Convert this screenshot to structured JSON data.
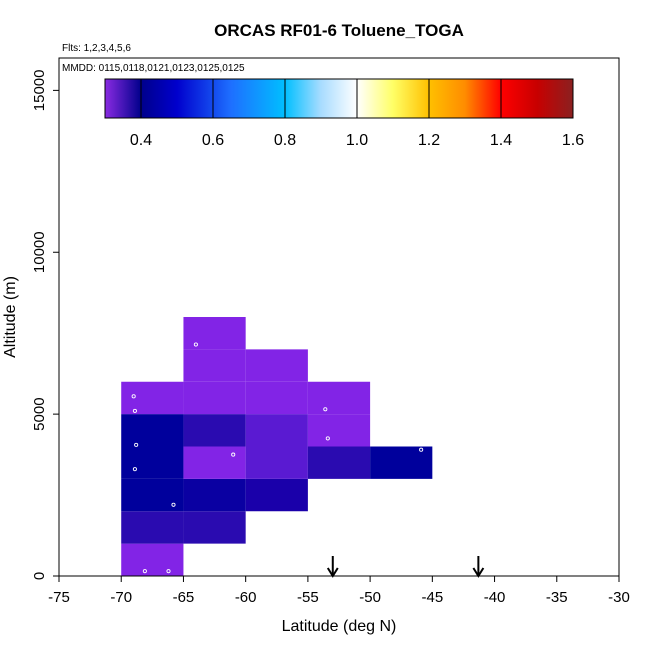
{
  "chart_data": {
    "type": "heatmap",
    "title": "ORCAS RF01-6 Toluene_TOGA",
    "subtitle_flights": "Flts: 1,2,3,4,5,6",
    "subtitle_dates": "MMDD: 0115,0118,0121,0123,0125,0125",
    "xlabel": "Latitude (deg N)",
    "ylabel": "Altitude (m)",
    "xlim": [
      -75,
      -30
    ],
    "ylim": [
      0,
      16000
    ],
    "x_ticks": [
      -75,
      -70,
      -65,
      -60,
      -55,
      -50,
      -45,
      -40,
      -35,
      -30
    ],
    "x_tick_labels": [
      "-75",
      "-70",
      "-65",
      "-60",
      "-55",
      "-50",
      "-45",
      "-40",
      "-35",
      "-30"
    ],
    "y_ticks": [
      0,
      5000,
      10000,
      15000
    ],
    "y_tick_labels": [
      "0",
      "5000",
      "10000",
      "15000"
    ],
    "colorbar": {
      "range": [
        0.3,
        1.6
      ],
      "ticks": [
        0.4,
        0.6,
        0.8,
        1.0,
        1.2,
        1.4,
        1.6
      ],
      "tick_labels": [
        "0.4",
        "0.6",
        "0.8",
        "1.0",
        "1.2",
        "1.4",
        "1.6"
      ],
      "stops": [
        {
          "value": 0.3,
          "color": "#8a2be2"
        },
        {
          "value": 0.4,
          "color": "#00008b"
        },
        {
          "value": 0.5,
          "color": "#0000cd"
        },
        {
          "value": 0.65,
          "color": "#1e6fff"
        },
        {
          "value": 0.8,
          "color": "#00bfff"
        },
        {
          "value": 0.9,
          "color": "#a8dcff"
        },
        {
          "value": 1.0,
          "color": "#ffffff"
        },
        {
          "value": 1.1,
          "color": "#ffff66"
        },
        {
          "value": 1.2,
          "color": "#ffc000"
        },
        {
          "value": 1.3,
          "color": "#ff8c00"
        },
        {
          "value": 1.4,
          "color": "#ff0000"
        },
        {
          "value": 1.5,
          "color": "#c80000"
        },
        {
          "value": 1.6,
          "color": "#8b2020"
        }
      ]
    },
    "cells": [
      {
        "lat": [
          -70,
          -65
        ],
        "alt": [
          0,
          1000
        ],
        "color": "#8224e6"
      },
      {
        "lat": [
          -70,
          -65
        ],
        "alt": [
          1000,
          2000
        ],
        "color": "#2a0bb0"
      },
      {
        "lat": [
          -65,
          -60
        ],
        "alt": [
          1000,
          2000
        ],
        "color": "#2a0bb0"
      },
      {
        "lat": [
          -70,
          -65
        ],
        "alt": [
          2000,
          3000
        ],
        "color": "#00009c"
      },
      {
        "lat": [
          -65,
          -60
        ],
        "alt": [
          2000,
          3000
        ],
        "color": "#0a00a2"
      },
      {
        "lat": [
          -60,
          -55
        ],
        "alt": [
          2000,
          3000
        ],
        "color": "#1a00aa"
      },
      {
        "lat": [
          -70,
          -65
        ],
        "alt": [
          3000,
          4000
        ],
        "color": "#00009c"
      },
      {
        "lat": [
          -65,
          -60
        ],
        "alt": [
          3000,
          4000
        ],
        "color": "#8224e6"
      },
      {
        "lat": [
          -60,
          -55
        ],
        "alt": [
          3000,
          4000
        ],
        "color": "#5a1ad2"
      },
      {
        "lat": [
          -55,
          -50
        ],
        "alt": [
          3000,
          4000
        ],
        "color": "#2a0bb0"
      },
      {
        "lat": [
          -50,
          -45
        ],
        "alt": [
          3000,
          4000
        ],
        "color": "#00009c"
      },
      {
        "lat": [
          -70,
          -65
        ],
        "alt": [
          4000,
          5000
        ],
        "color": "#00009c"
      },
      {
        "lat": [
          -65,
          -60
        ],
        "alt": [
          4000,
          5000
        ],
        "color": "#2a0bb0"
      },
      {
        "lat": [
          -60,
          -55
        ],
        "alt": [
          4000,
          5000
        ],
        "color": "#5a1ad2"
      },
      {
        "lat": [
          -55,
          -50
        ],
        "alt": [
          4000,
          5000
        ],
        "color": "#8224e6"
      },
      {
        "lat": [
          -70,
          -65
        ],
        "alt": [
          5000,
          6000
        ],
        "color": "#8224e6"
      },
      {
        "lat": [
          -65,
          -60
        ],
        "alt": [
          5000,
          6000
        ],
        "color": "#8224e6"
      },
      {
        "lat": [
          -60,
          -55
        ],
        "alt": [
          5000,
          6000
        ],
        "color": "#8224e6"
      },
      {
        "lat": [
          -55,
          -50
        ],
        "alt": [
          5000,
          6000
        ],
        "color": "#8224e6"
      },
      {
        "lat": [
          -65,
          -60
        ],
        "alt": [
          6000,
          7000
        ],
        "color": "#8224e6"
      },
      {
        "lat": [
          -60,
          -55
        ],
        "alt": [
          6000,
          7000
        ],
        "color": "#8224e6"
      },
      {
        "lat": [
          -65,
          -60
        ],
        "alt": [
          7000,
          8000
        ],
        "color": "#8224e6"
      }
    ],
    "points": [
      {
        "lat": -68.1,
        "alt": 150
      },
      {
        "lat": -66.2,
        "alt": 150
      },
      {
        "lat": -65.8,
        "alt": 2200
      },
      {
        "lat": -68.9,
        "alt": 3300
      },
      {
        "lat": -68.8,
        "alt": 4050
      },
      {
        "lat": -61.0,
        "alt": 3750
      },
      {
        "lat": -53.4,
        "alt": 4250
      },
      {
        "lat": -45.9,
        "alt": 3900
      },
      {
        "lat": -68.9,
        "alt": 5100
      },
      {
        "lat": -69.0,
        "alt": 5550
      },
      {
        "lat": -53.6,
        "alt": 5150
      },
      {
        "lat": -64.0,
        "alt": 7150
      }
    ],
    "arrows": [
      {
        "lat": -53.0
      },
      {
        "lat": -41.3
      }
    ]
  }
}
